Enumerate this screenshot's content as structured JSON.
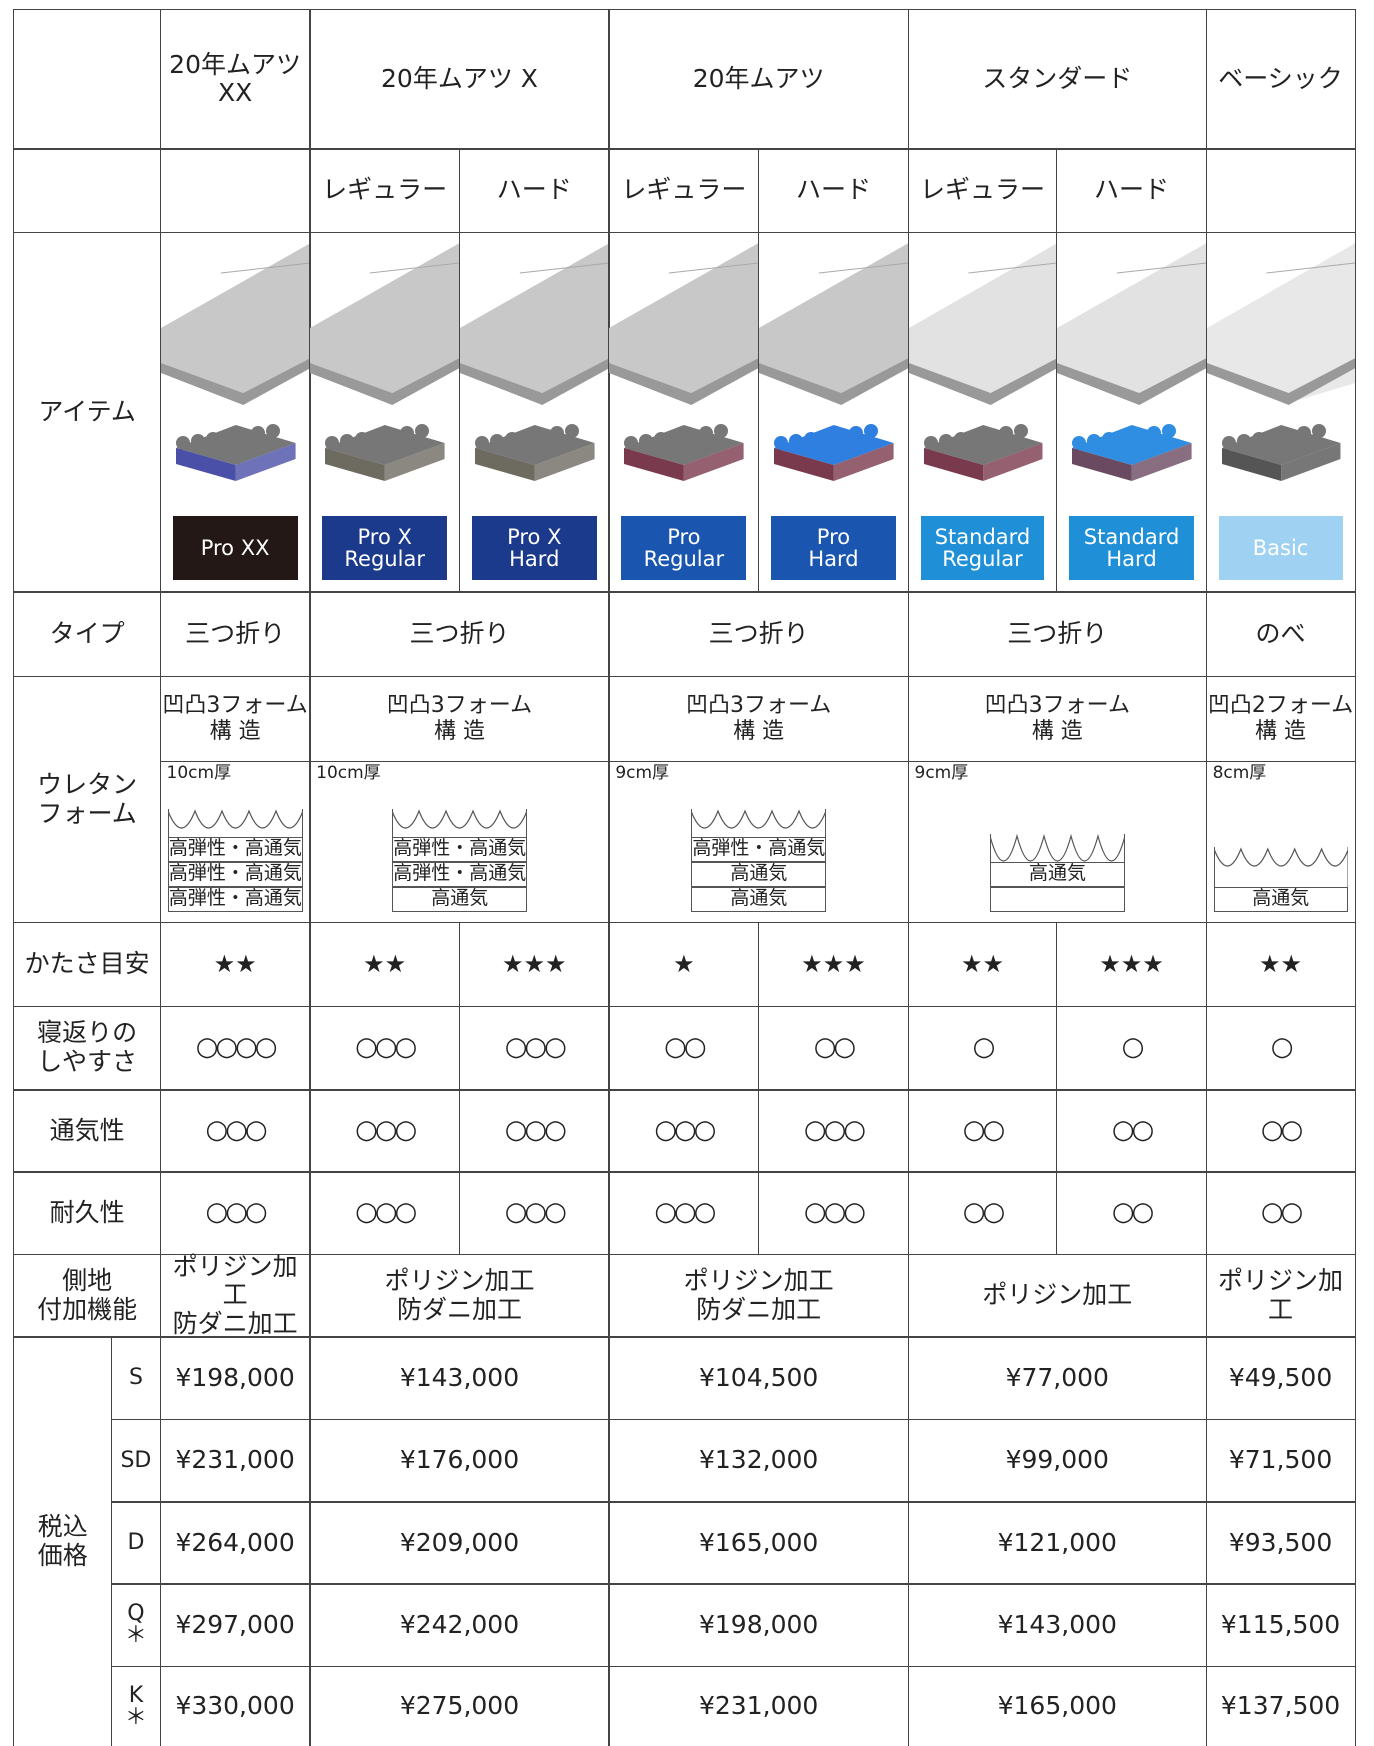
{
  "header": {
    "products": [
      "20年ムアツ\nXX",
      "20年ムアツ X",
      "20年ムアツ",
      "スタンダード",
      "ベーシック"
    ]
  },
  "variants": [
    "レギュラー",
    "ハード",
    "レギュラー",
    "ハード",
    "レギュラー",
    "ハード"
  ],
  "item": {
    "label": "アイテム",
    "badges": [
      "Pro XX",
      "Pro X\nRegular",
      "Pro X\nHard",
      "Pro\nRegular",
      "Pro\nHard",
      "Standard\nRegular",
      "Standard\nHard",
      "Basic"
    ]
  },
  "type": {
    "label": "タイプ",
    "values": [
      "三つ折り",
      "三つ折り",
      "三つ折り",
      "三つ折り",
      "のべ"
    ]
  },
  "urethane": {
    "label": "ウレタン\nフォーム",
    "structure": [
      "凹凸3フォーム\n構 造",
      "凹凸3フォーム\n構 造",
      "凹凸3フォーム\n構 造",
      "凹凸3フォーム\n構 造",
      "凹凸2フォーム\n構 造"
    ],
    "thickness": [
      "10cm厚",
      "10cm厚",
      "9cm厚",
      "9cm厚",
      "8cm厚"
    ],
    "layers": [
      [
        "高弾性・高通気",
        "高弾性・高通気",
        "高弾性・高通気"
      ],
      [
        "高弾性・高通気",
        "高弾性・高通気",
        "高通気"
      ],
      [
        "高弾性・高通気",
        "高通気",
        "高通気"
      ],
      [
        "高通気"
      ],
      [
        "高通気"
      ]
    ]
  },
  "hardness": {
    "label": "かたさ目安",
    "values": [
      "★★",
      "★★",
      "★★★",
      "★",
      "★★★",
      "★★",
      "★★★",
      "★★"
    ]
  },
  "turning": {
    "label": "寝返りの\nしやすさ",
    "values": [
      "○○○○",
      "○○○",
      "○○○",
      "○○",
      "○○",
      "○",
      "○",
      "○"
    ]
  },
  "breathability": {
    "label": "通気性",
    "values": [
      "○○○",
      "○○○",
      "○○○",
      "○○○",
      "○○○",
      "○○",
      "○○",
      "○○"
    ]
  },
  "durability": {
    "label": "耐久性",
    "values": [
      "○○○",
      "○○○",
      "○○○",
      "○○○",
      "○○○",
      "○○",
      "○○",
      "○○"
    ]
  },
  "fabric": {
    "label": "側地\n付加機能",
    "values": [
      "ポリジン加工\n防ダニ加工",
      "ポリジン加工\n防ダニ加工",
      "ポリジン加工\n防ダニ加工",
      "ポリジン加工",
      "ポリジン加工"
    ]
  },
  "price": {
    "label": "税込\n価格",
    "sizes": [
      "S",
      "SD",
      "D",
      "Q\n＊",
      "K\n＊"
    ],
    "rows": [
      [
        "¥198,000",
        "¥143,000",
        "¥104,500",
        "¥77,000",
        "¥49,500"
      ],
      [
        "¥231,000",
        "¥176,000",
        "¥132,000",
        "¥99,000",
        "¥71,500"
      ],
      [
        "¥264,000",
        "¥209,000",
        "¥165,000",
        "¥121,000",
        "¥93,500"
      ],
      [
        "¥297,000",
        "¥242,000",
        "¥198,000",
        "¥143,000",
        "¥115,500"
      ],
      [
        "¥330,000",
        "¥275,000",
        "¥231,000",
        "¥165,000",
        "¥137,500"
      ]
    ]
  }
}
